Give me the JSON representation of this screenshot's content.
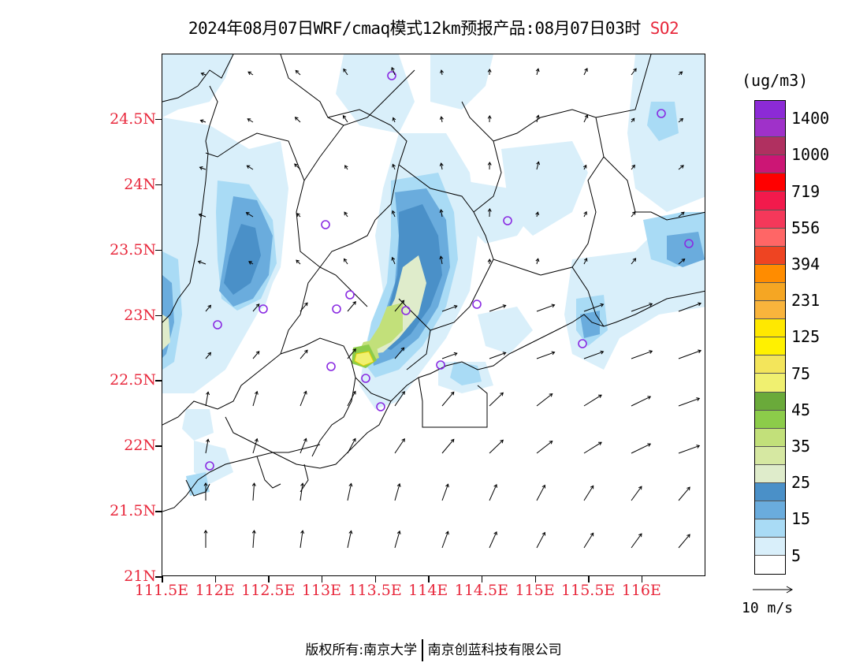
{
  "title": {
    "text": "2024年08月07日WRF/cmaq模式12km预报产品:08月07日03时",
    "species": "SO2"
  },
  "axes": {
    "y_ticks": [
      "24.5N",
      "24N",
      "23.5N",
      "23N",
      "22.5N",
      "22N",
      "21.5N",
      "21N"
    ],
    "x_ticks": [
      "111.5E",
      "112E",
      "112.5E",
      "113E",
      "113.5E",
      "114E",
      "114.5E",
      "115E",
      "115.5E",
      "116E"
    ],
    "lon_range": [
      111.5,
      116.6
    ],
    "lat_range": [
      21.0,
      25.0
    ]
  },
  "legend": {
    "unit": "(ug/m3)",
    "labels": [
      "1400",
      "1000",
      "719",
      "556",
      "394",
      "231",
      "125",
      "75",
      "45",
      "35",
      "25",
      "15",
      "5"
    ],
    "colors": [
      "#8c2ad6",
      "#9f31c9",
      "#b03060",
      "#cc1675",
      "#ff0000",
      "#f21a4c",
      "#f5385a",
      "#ff6666",
      "#ee4422",
      "#ff8c00",
      "#f5a623",
      "#f9b43c",
      "#ffe800",
      "#fff100",
      "#f3e55b",
      "#f0f070",
      "#6aaa3a",
      "#8ccc4a",
      "#c2e07a",
      "#d6e8a2",
      "#dfeccb",
      "#4a90c8",
      "#6aacdd",
      "#a9dbf5",
      "#d9effa",
      "#ffffff"
    ]
  },
  "wind_reference": {
    "label": "10 m/s"
  },
  "stations_color": "#8a2be2",
  "footer": {
    "left": "版权所有:南京大学",
    "right": "南京创蓝科技有限公司"
  }
}
